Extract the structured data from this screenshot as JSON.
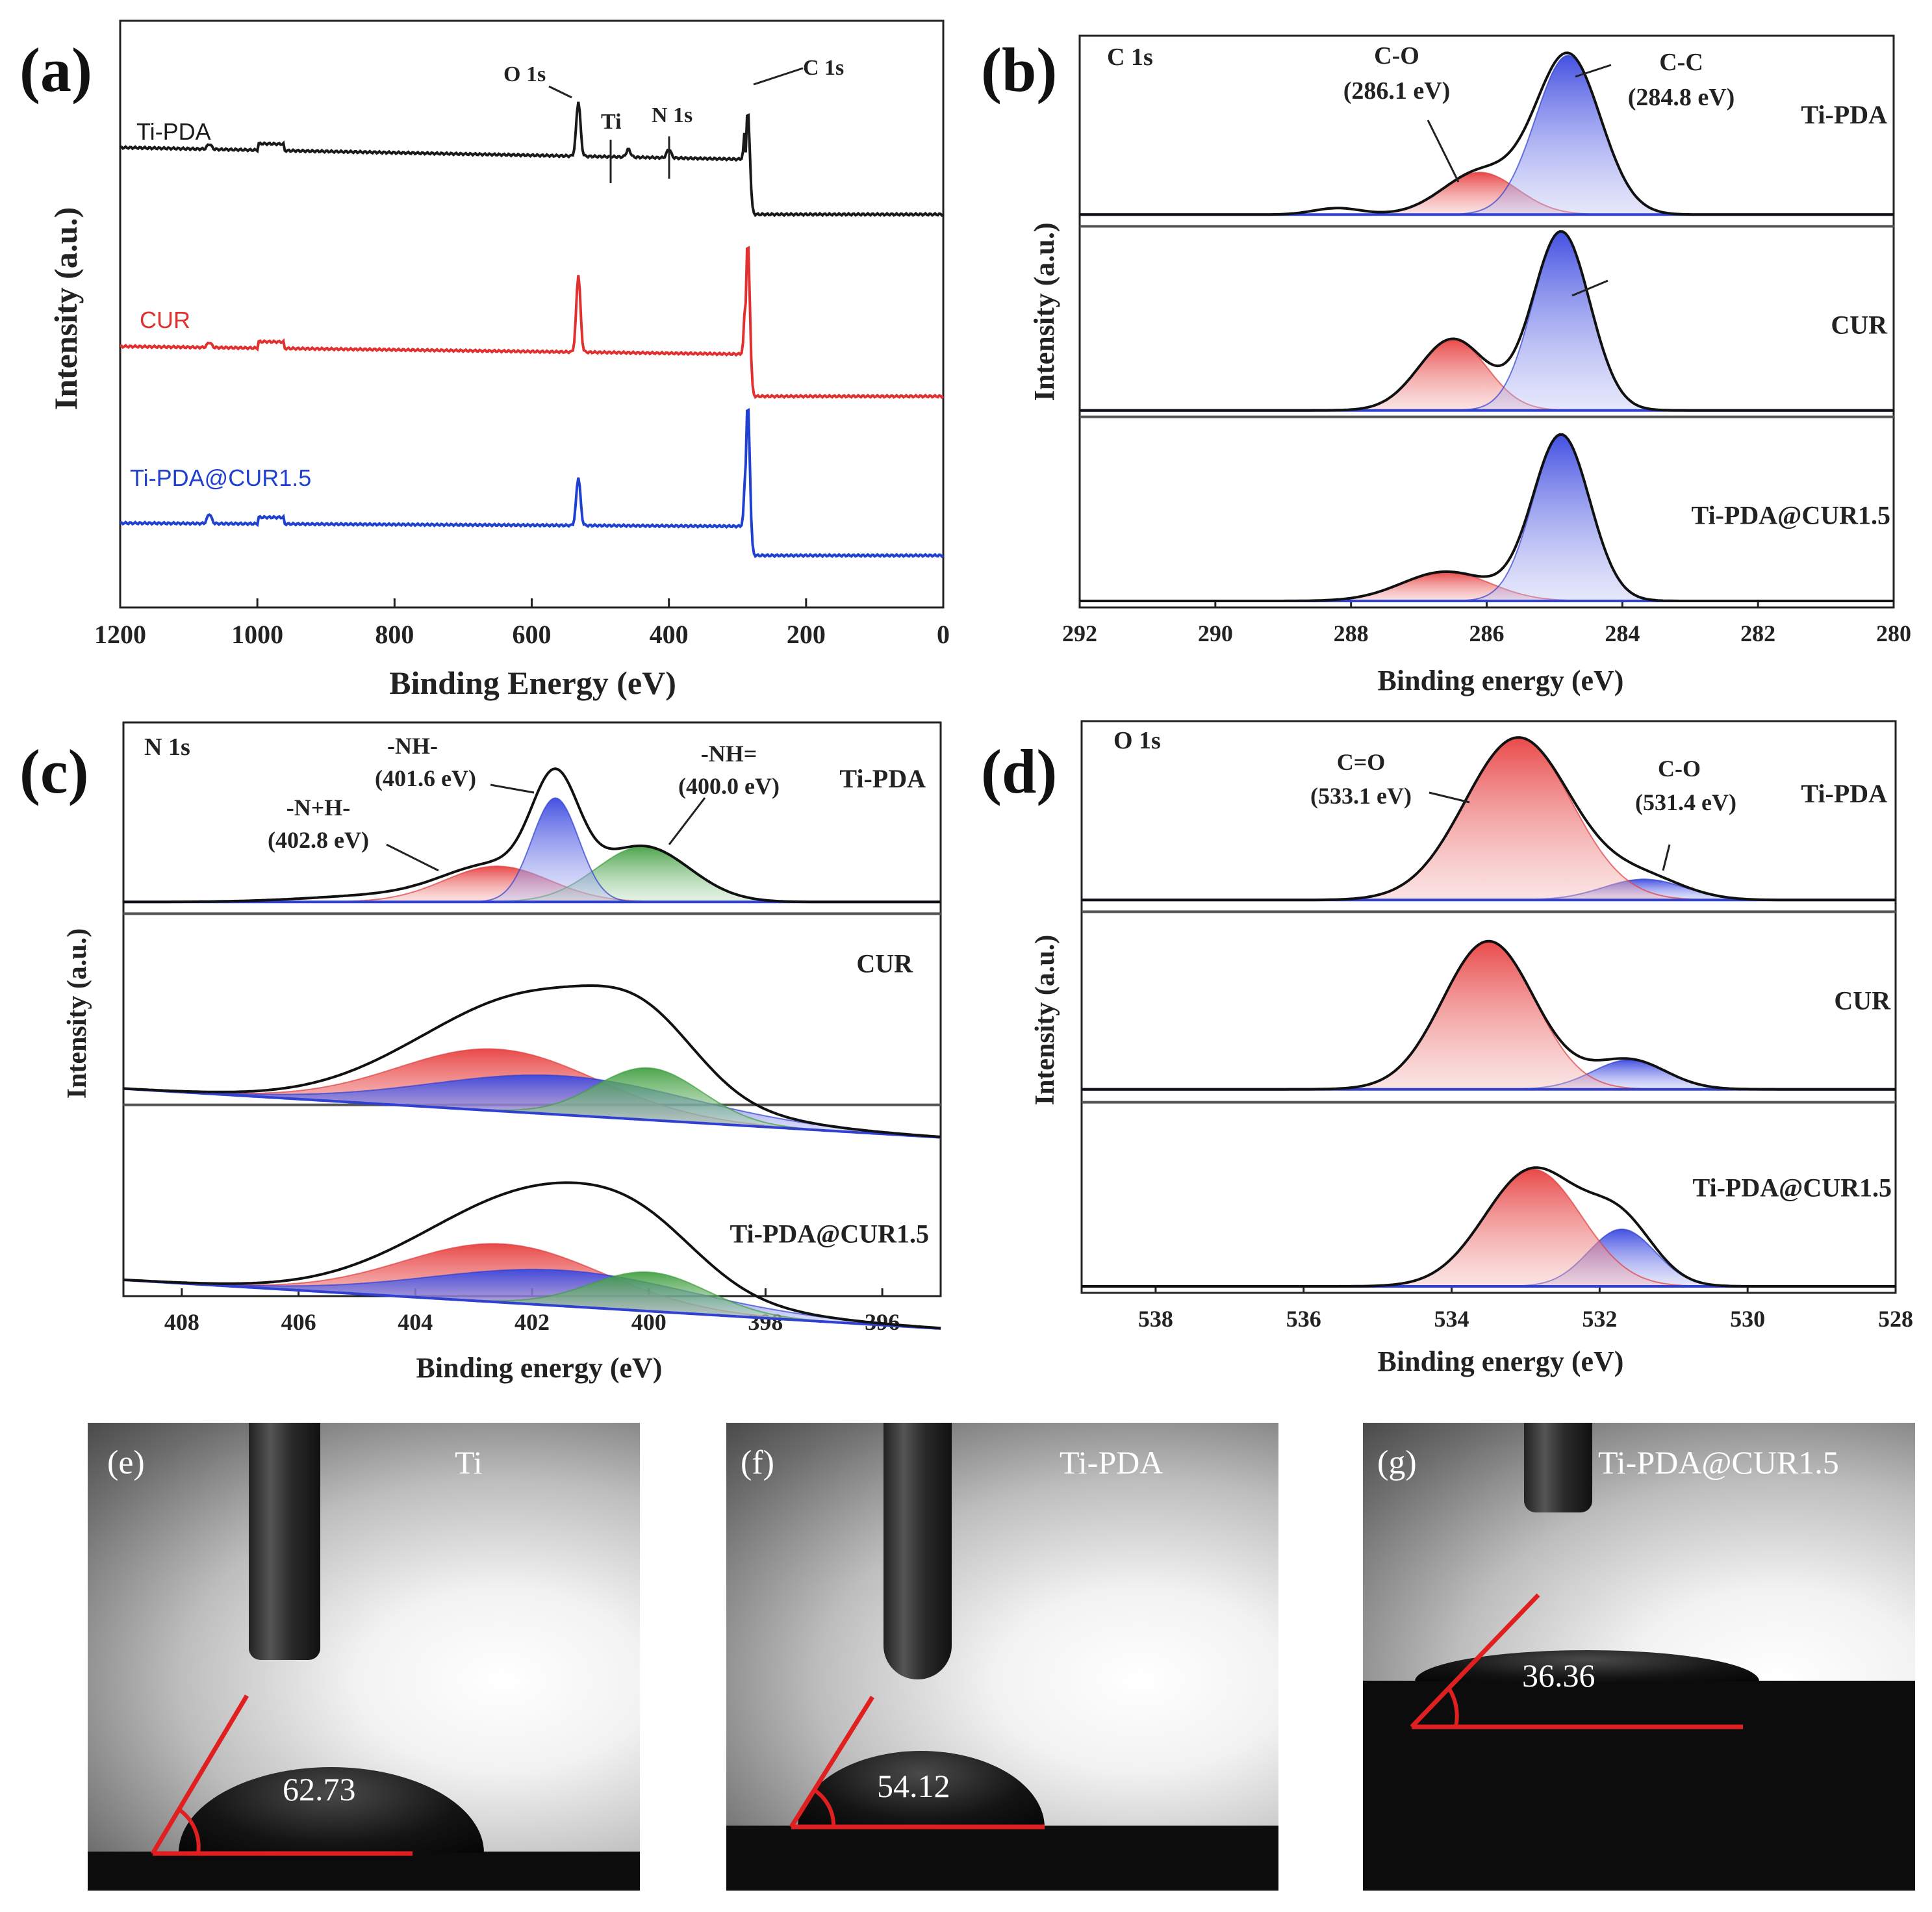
{
  "chart_data": [
    {
      "panel": "(a)",
      "type": "line",
      "xlabel": "Binding Energy (eV)",
      "ylabel": "Intensity (a.u.)",
      "xlim": [
        1200,
        0
      ],
      "xticks": [
        "1200",
        "1000",
        "800",
        "600",
        "400",
        "200",
        "0"
      ],
      "series": [
        {
          "name": "Ti-PDA",
          "color": "#1a1a1a"
        },
        {
          "name": "CUR",
          "color": "#e03030"
        },
        {
          "name": "Ti-PDA@CUR1.5",
          "color": "#2040d0"
        }
      ],
      "annotations": [
        "O 1s",
        "Ti",
        "N 1s",
        "C 1s"
      ],
      "peaks_eV": {
        "O 1s": 532,
        "Ti": 459,
        "N 1s": 400,
        "C 1s": 285
      }
    },
    {
      "panel": "(b)",
      "type": "area",
      "title": "C 1s",
      "xlabel": "Binding energy (eV)",
      "ylabel": "Intensity (a.u.)",
      "xlim": [
        292,
        280
      ],
      "xticks": [
        "292",
        "290",
        "288",
        "286",
        "284",
        "282",
        "280"
      ],
      "samples": [
        "Ti-PDA",
        "CUR",
        "Ti-PDA@CUR1.5"
      ],
      "components": [
        {
          "name": "C-O",
          "label": "(286.1 eV)",
          "center": 286.1,
          "color": "#e04040"
        },
        {
          "name": "C-C",
          "label": "(284.8 eV)",
          "center": 284.8,
          "color": "#3040d0"
        }
      ]
    },
    {
      "panel": "(c)",
      "type": "area",
      "title": "N 1s",
      "xlabel": "Binding energy (eV)",
      "ylabel": "Intensity (a.u.)",
      "xlim": [
        409,
        395
      ],
      "xticks": [
        "408",
        "406",
        "404",
        "402",
        "400",
        "398",
        "396"
      ],
      "samples": [
        "Ti-PDA",
        "CUR",
        "Ti-PDA@CUR1.5"
      ],
      "components": [
        {
          "name": "-N+H-",
          "label": "(402.8 eV)",
          "center": 402.8,
          "color": "#e04040"
        },
        {
          "name": "-NH-",
          "label": "(401.6 eV)",
          "center": 401.6,
          "color": "#3040d0"
        },
        {
          "name": "-NH=",
          "label": "(400.0 eV)",
          "center": 400.0,
          "color": "#40a040"
        }
      ]
    },
    {
      "panel": "(d)",
      "type": "area",
      "title": "O 1s",
      "xlabel": "Binding energy (eV)",
      "ylabel": "Intensity (a.u.)",
      "xlim": [
        539,
        528
      ],
      "xticks": [
        "538",
        "536",
        "534",
        "532",
        "530",
        "528"
      ],
      "samples": [
        "Ti-PDA",
        "CUR",
        "Ti-PDA@CUR1.5"
      ],
      "components": [
        {
          "name": "C=O",
          "label": "(533.1 eV)",
          "center": 533.1,
          "color": "#e04040"
        },
        {
          "name": "C-O",
          "label": "(531.4 eV)",
          "center": 531.4,
          "color": "#3040d0"
        }
      ]
    }
  ],
  "photos": [
    {
      "label": "(e)",
      "sample": "Ti",
      "angle": "62.73"
    },
    {
      "label": "(f)",
      "sample": "Ti-PDA",
      "angle": "54.12"
    },
    {
      "label": "(g)",
      "sample": "Ti-PDA@CUR1.5",
      "angle": "36.36"
    }
  ]
}
